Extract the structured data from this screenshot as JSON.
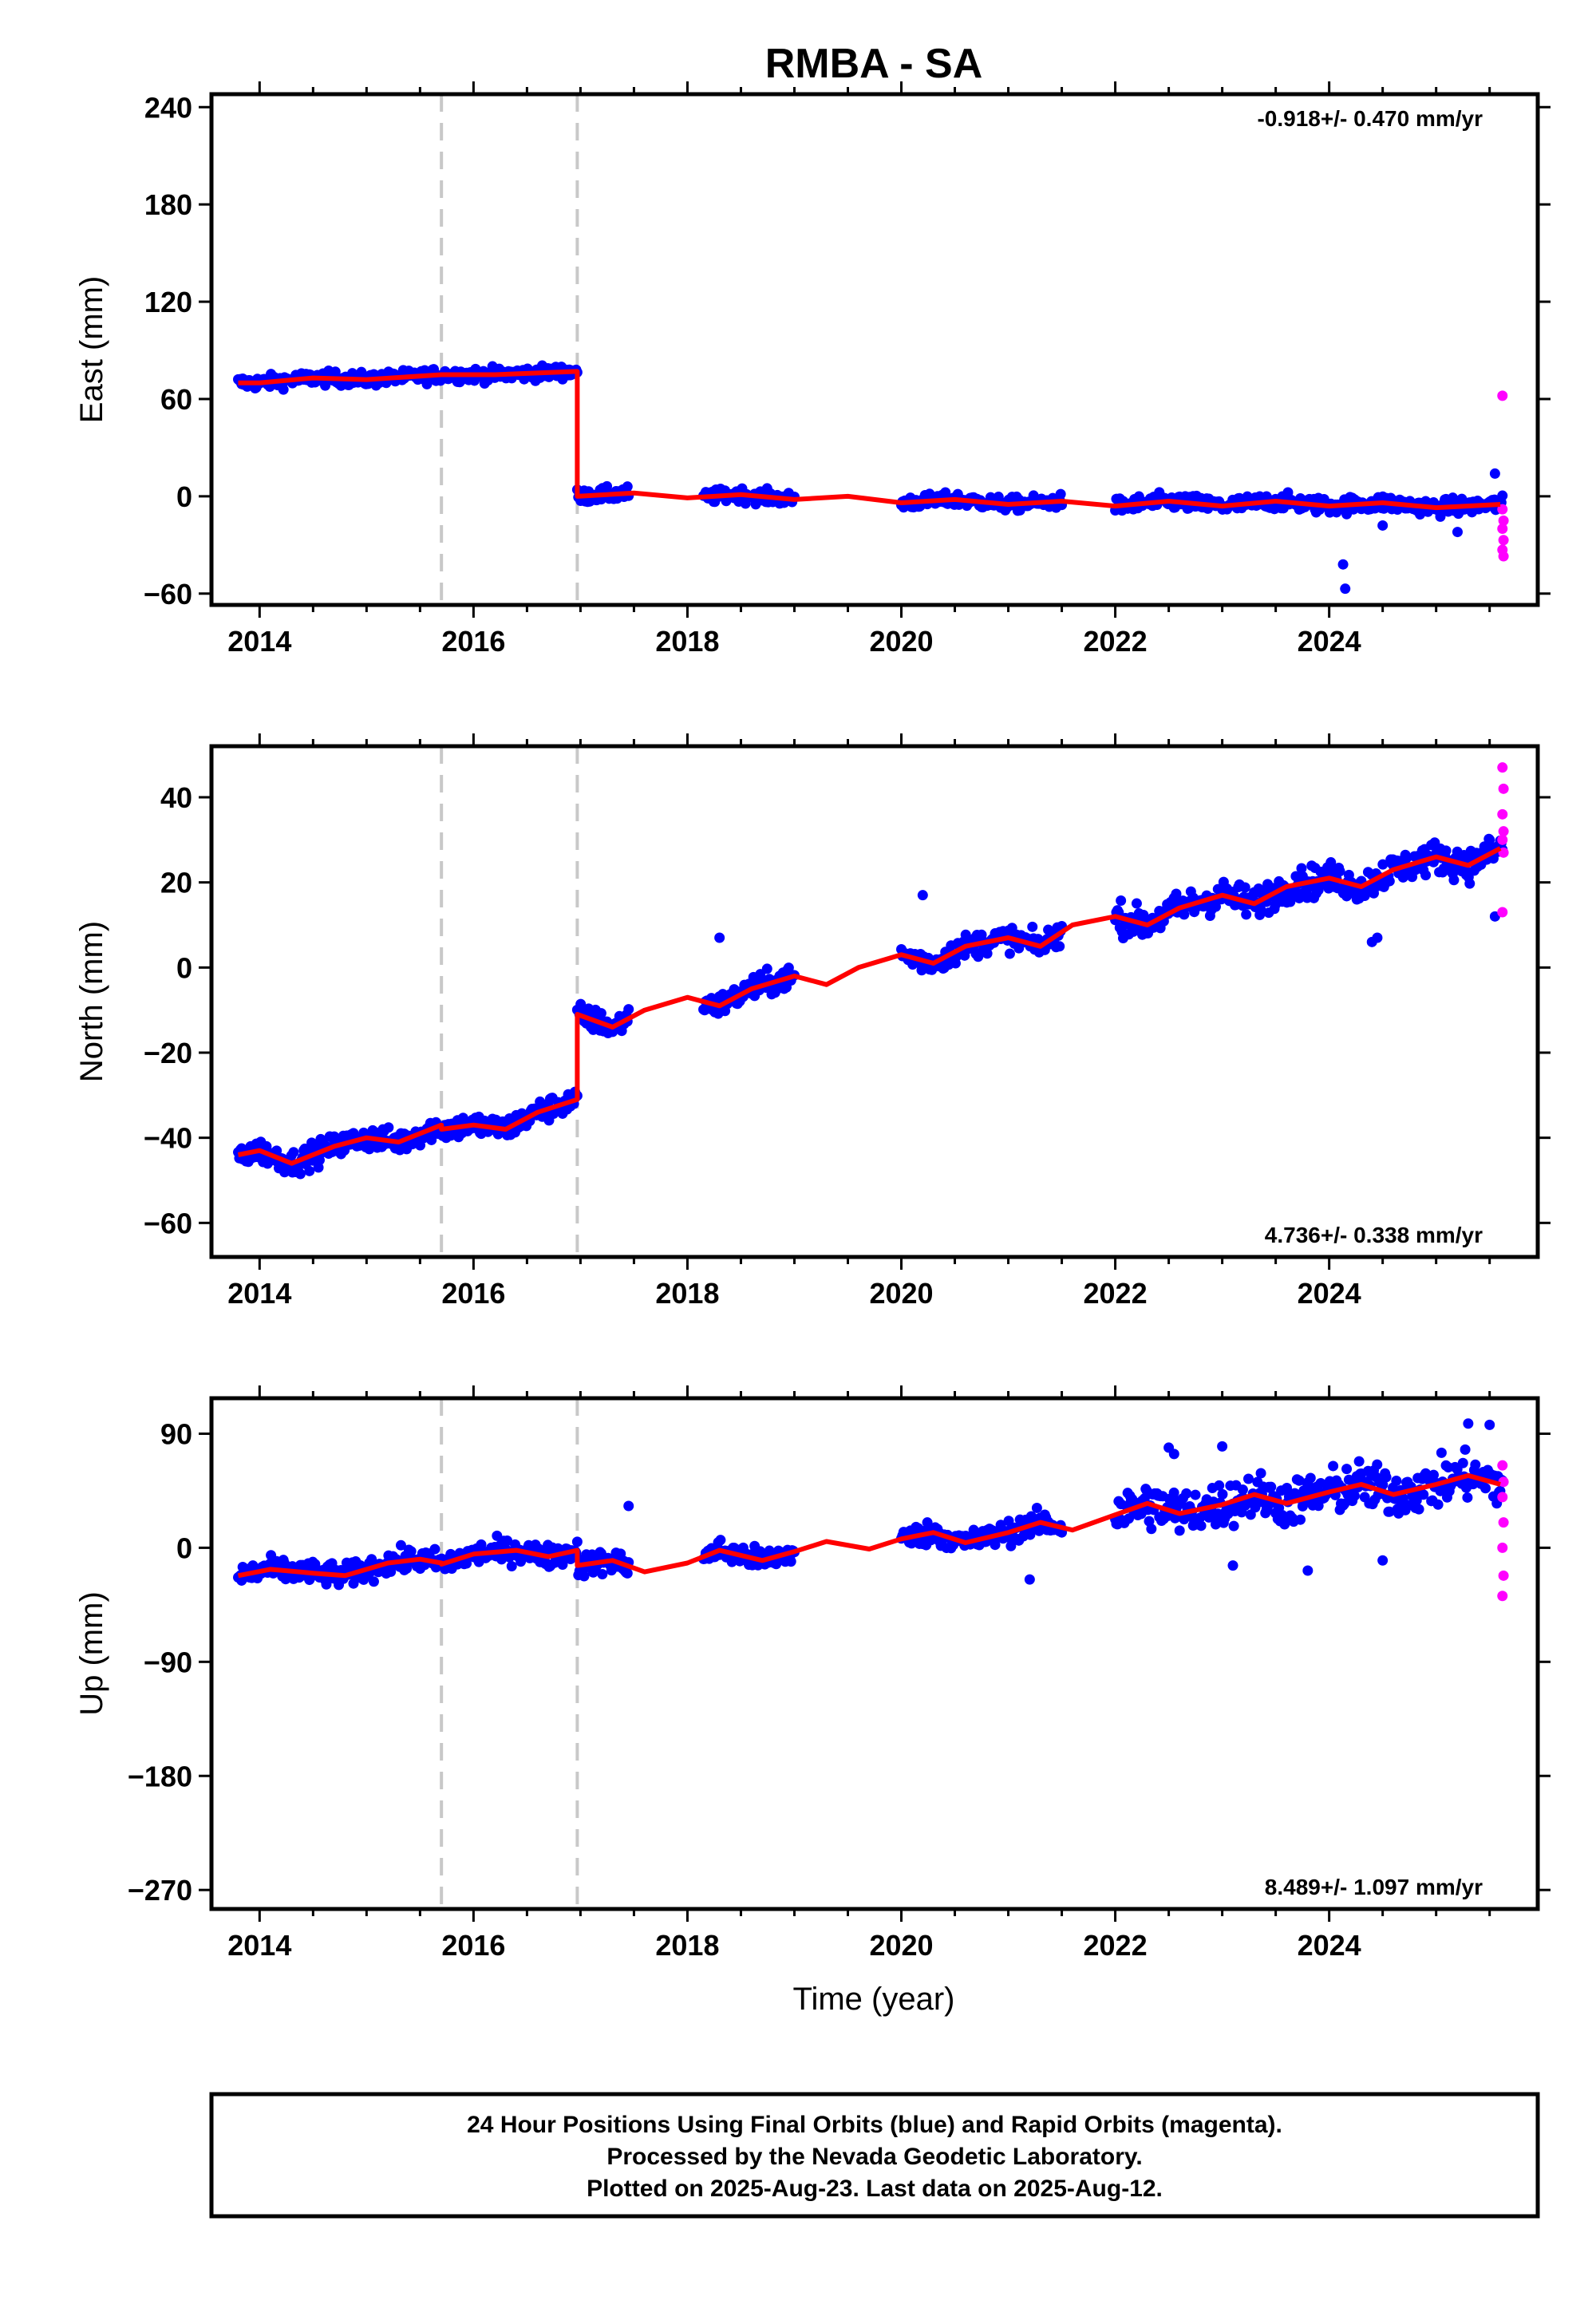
{
  "title": "RMBA - SA",
  "xlabel": "Time (year)",
  "footer": [
    "24 Hour Positions Using Final Orbits (blue) and Rapid Orbits (magenta).",
    "Processed by the Nevada Geodetic Laboratory.",
    "Plotted on 2025-Aug-23. Last data on 2025-Aug-12."
  ],
  "colors": {
    "final": "#0000ff",
    "rapid": "#ff00ff",
    "model": "#ff0000",
    "event": "#c8c8c8"
  },
  "chart_data": [
    {
      "type": "scatter",
      "ylabel": "East (mm)",
      "rate": "-0.918+/- 0.470 mm/yr",
      "rate_position": "top-right",
      "xlim": [
        2013.55,
        2025.95
      ],
      "ylim": [
        -67,
        248
      ],
      "xticks": [
        2014,
        2016,
        2018,
        2020,
        2022,
        2024
      ],
      "yticks": [
        240,
        180,
        120,
        60,
        0,
        -60
      ],
      "ytick_labels": [
        "240",
        "180",
        "120",
        "60",
        "0",
        "−60"
      ],
      "events": [
        2015.7,
        2016.97
      ],
      "segments": [
        [
          2013.8,
          2016.97
        ],
        [
          2016.97,
          2017.45
        ],
        [
          2018.15,
          2019.0
        ],
        [
          2020.0,
          2021.5
        ],
        [
          2022.0,
          2025.62
        ]
      ],
      "model": [
        [
          2013.8,
          70
        ],
        [
          2014.0,
          70
        ],
        [
          2014.5,
          73
        ],
        [
          2015.0,
          72
        ],
        [
          2015.7,
          75
        ],
        [
          2016.2,
          75
        ],
        [
          2016.97,
          77
        ],
        [
          2016.97,
          0
        ],
        [
          2017.5,
          2
        ],
        [
          2018.0,
          -1
        ],
        [
          2018.5,
          1
        ],
        [
          2019.0,
          -2
        ],
        [
          2019.5,
          0
        ],
        [
          2020.0,
          -4
        ],
        [
          2020.5,
          -2
        ],
        [
          2021.0,
          -5
        ],
        [
          2021.5,
          -3
        ],
        [
          2022.0,
          -6
        ],
        [
          2022.5,
          -3
        ],
        [
          2023.0,
          -6
        ],
        [
          2023.5,
          -3
        ],
        [
          2024.0,
          -6
        ],
        [
          2024.5,
          -4
        ],
        [
          2025.0,
          -7
        ],
        [
          2025.6,
          -5
        ]
      ],
      "outliers": [
        [
          2024.13,
          -42
        ],
        [
          2024.15,
          -57
        ],
        [
          2024.5,
          -18
        ],
        [
          2025.2,
          -22
        ],
        [
          2025.55,
          14
        ]
      ],
      "rapid": [
        [
          2025.62,
          62
        ],
        [
          2025.62,
          -8
        ],
        [
          2025.63,
          -15
        ],
        [
          2025.62,
          -20
        ],
        [
          2025.63,
          -27
        ],
        [
          2025.62,
          -33
        ],
        [
          2025.63,
          -37
        ]
      ]
    },
    {
      "type": "scatter",
      "ylabel": "North (mm)",
      "rate": "4.736+/- 0.338 mm/yr",
      "rate_position": "bottom-right",
      "xlim": [
        2013.55,
        2025.95
      ],
      "ylim": [
        -68,
        52
      ],
      "xticks": [
        2014,
        2016,
        2018,
        2020,
        2022,
        2024
      ],
      "yticks": [
        40,
        20,
        0,
        -20,
        -40,
        -60
      ],
      "ytick_labels": [
        "40",
        "20",
        "0",
        "−20",
        "−40",
        "−60"
      ],
      "events": [
        2015.7,
        2016.97
      ],
      "segments": [
        [
          2013.8,
          2016.97
        ],
        [
          2016.97,
          2017.45
        ],
        [
          2018.15,
          2019.0
        ],
        [
          2020.0,
          2021.5
        ],
        [
          2022.0,
          2025.62
        ]
      ],
      "model": [
        [
          2013.8,
          -44
        ],
        [
          2014.0,
          -43
        ],
        [
          2014.3,
          -46
        ],
        [
          2014.7,
          -42
        ],
        [
          2015.0,
          -40
        ],
        [
          2015.3,
          -41
        ],
        [
          2015.7,
          -37
        ],
        [
          2015.7,
          -38
        ],
        [
          2016.0,
          -37
        ],
        [
          2016.3,
          -38
        ],
        [
          2016.6,
          -34
        ],
        [
          2016.97,
          -31
        ],
        [
          2016.97,
          -11
        ],
        [
          2017.3,
          -14
        ],
        [
          2017.6,
          -10
        ],
        [
          2018.0,
          -7
        ],
        [
          2018.3,
          -9
        ],
        [
          2018.6,
          -5
        ],
        [
          2019.0,
          -2
        ],
        [
          2019.3,
          -4
        ],
        [
          2019.6,
          0
        ],
        [
          2020.0,
          3
        ],
        [
          2020.3,
          1
        ],
        [
          2020.6,
          5
        ],
        [
          2021.0,
          7
        ],
        [
          2021.3,
          5
        ],
        [
          2021.6,
          10
        ],
        [
          2022.0,
          12
        ],
        [
          2022.3,
          10
        ],
        [
          2022.6,
          14
        ],
        [
          2023.0,
          17
        ],
        [
          2023.3,
          15
        ],
        [
          2023.6,
          19
        ],
        [
          2024.0,
          21
        ],
        [
          2024.3,
          19
        ],
        [
          2024.6,
          23
        ],
        [
          2025.0,
          26
        ],
        [
          2025.3,
          24
        ],
        [
          2025.6,
          28
        ]
      ],
      "outliers": [
        [
          2018.3,
          7
        ],
        [
          2020.2,
          17
        ],
        [
          2024.4,
          6
        ],
        [
          2024.45,
          7
        ],
        [
          2025.55,
          12
        ],
        [
          2025.5,
          30
        ]
      ],
      "rapid": [
        [
          2025.62,
          47
        ],
        [
          2025.63,
          42
        ],
        [
          2025.62,
          36
        ],
        [
          2025.63,
          32
        ],
        [
          2025.62,
          30
        ],
        [
          2025.63,
          27
        ],
        [
          2025.62,
          13
        ]
      ]
    },
    {
      "type": "scatter",
      "ylabel": "Up (mm)",
      "rate": "8.489+/- 1.097 mm/yr",
      "rate_position": "bottom-right",
      "xlim": [
        2013.55,
        2025.95
      ],
      "ylim": [
        -285,
        118
      ],
      "xticks": [
        2014,
        2016,
        2018,
        2020,
        2022,
        2024
      ],
      "yticks": [
        90,
        0,
        -90,
        -180,
        -270
      ],
      "ytick_labels": [
        "90",
        "0",
        "−90",
        "−180",
        "−270"
      ],
      "events": [
        2015.7,
        2016.97
      ],
      "segments": [
        [
          2013.8,
          2016.97
        ],
        [
          2016.97,
          2017.45
        ],
        [
          2018.15,
          2019.0
        ],
        [
          2020.0,
          2021.5
        ],
        [
          2022.0,
          2025.62
        ]
      ],
      "model": [
        [
          2013.8,
          -22
        ],
        [
          2014.1,
          -17
        ],
        [
          2014.5,
          -20
        ],
        [
          2014.8,
          -22
        ],
        [
          2015.2,
          -12
        ],
        [
          2015.5,
          -9
        ],
        [
          2015.7,
          -12
        ],
        [
          2015.7,
          -13
        ],
        [
          2016.0,
          -5
        ],
        [
          2016.4,
          -2
        ],
        [
          2016.7,
          -7
        ],
        [
          2016.97,
          -2
        ],
        [
          2016.97,
          -14
        ],
        [
          2017.3,
          -10
        ],
        [
          2017.6,
          -19
        ],
        [
          2018.0,
          -12
        ],
        [
          2018.3,
          -2
        ],
        [
          2018.7,
          -10
        ],
        [
          2019.0,
          -3
        ],
        [
          2019.3,
          5
        ],
        [
          2019.7,
          -1
        ],
        [
          2020.0,
          7
        ],
        [
          2020.3,
          12
        ],
        [
          2020.6,
          4
        ],
        [
          2021.0,
          12
        ],
        [
          2021.3,
          20
        ],
        [
          2021.6,
          14
        ],
        [
          2022.0,
          26
        ],
        [
          2022.3,
          35
        ],
        [
          2022.6,
          27
        ],
        [
          2023.0,
          34
        ],
        [
          2023.3,
          42
        ],
        [
          2023.6,
          35
        ],
        [
          2024.0,
          44
        ],
        [
          2024.3,
          50
        ],
        [
          2024.6,
          42
        ],
        [
          2025.0,
          50
        ],
        [
          2025.3,
          57
        ],
        [
          2025.6,
          50
        ]
      ],
      "outliers": [
        [
          2017.45,
          33
        ],
        [
          2022.5,
          79
        ],
        [
          2022.55,
          74
        ],
        [
          2023.0,
          80
        ],
        [
          2025.3,
          98
        ],
        [
          2025.5,
          97
        ],
        [
          2023.8,
          -18
        ],
        [
          2024.5,
          -10
        ],
        [
          2023.1,
          -14
        ],
        [
          2021.2,
          -25
        ]
      ],
      "rapid": [
        [
          2025.62,
          65
        ],
        [
          2025.63,
          52
        ],
        [
          2025.62,
          40
        ],
        [
          2025.63,
          20
        ],
        [
          2025.62,
          0
        ],
        [
          2025.63,
          -22
        ],
        [
          2025.62,
          -38
        ]
      ]
    }
  ]
}
